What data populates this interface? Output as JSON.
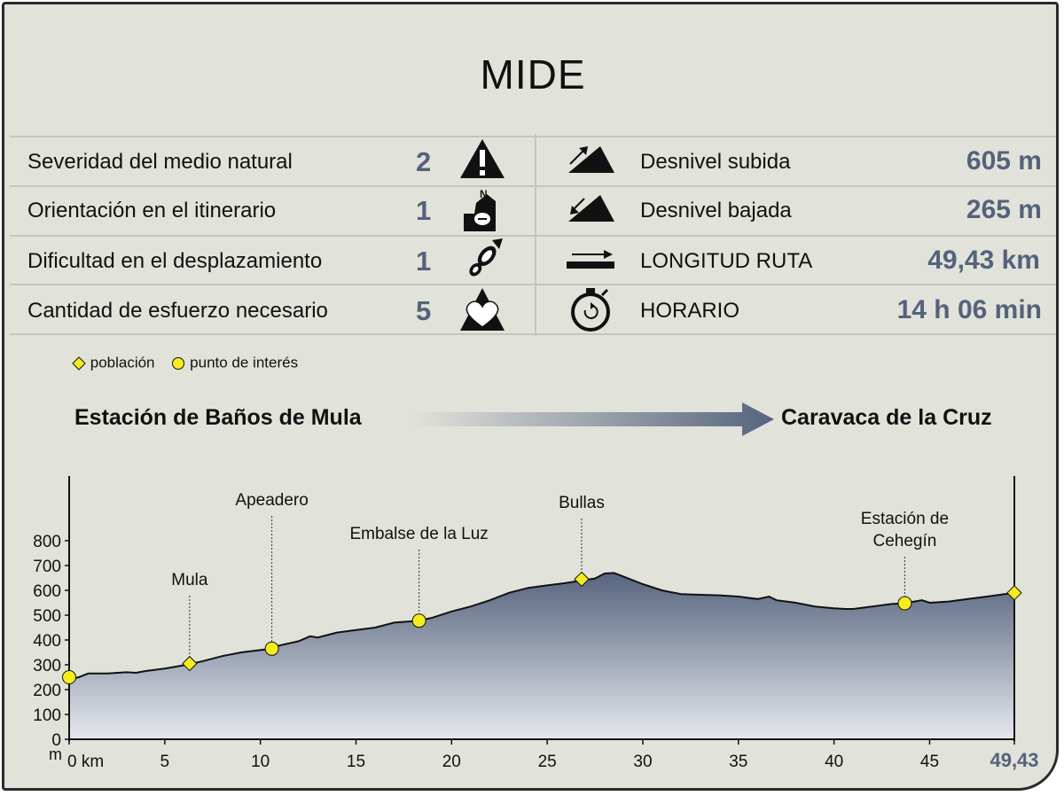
{
  "title": "MIDE",
  "mide": [
    {
      "label": "Severidad del medio natural",
      "value": "2",
      "icon": "warning-mountain-icon"
    },
    {
      "label": "Orientación en el itinerario",
      "value": "1",
      "icon": "compass-orientation-icon"
    },
    {
      "label": "Dificultad en el desplazamiento",
      "value": "1",
      "icon": "footprint-icon"
    },
    {
      "label": "Cantidad de esfuerzo necesario",
      "value": "5",
      "icon": "heart-mountain-icon"
    }
  ],
  "stats": [
    {
      "label": "Desnivel subida",
      "value": "605 m",
      "icon": "ascent-icon"
    },
    {
      "label": "Desnivel bajada",
      "value": "265 m",
      "icon": "descent-icon"
    },
    {
      "label": "LONGITUD RUTA",
      "value": "49,43 km",
      "icon": "distance-arrow-icon"
    },
    {
      "label": "HORARIO",
      "value": "14 h 06 min",
      "icon": "stopwatch-icon"
    }
  ],
  "legend": {
    "poblacion": "población",
    "punto": "punto de interés"
  },
  "route": {
    "from": "Estación de Baños de Mula",
    "to": "Caravaca de la Cruz"
  },
  "colors": {
    "profile_top": "#56647e",
    "profile_bottom": "#e6e8ee",
    "marker": "#f5ec1e",
    "value": "#55627a"
  },
  "chart_data": {
    "type": "area",
    "ylabel": "m",
    "xlabel": "",
    "x_unit": "km",
    "xlim": [
      0,
      49.43
    ],
    "ylim": [
      0,
      800
    ],
    "yticks": [
      "0",
      "100",
      "200",
      "300",
      "400",
      "500",
      "600",
      "700",
      "800"
    ],
    "xticks": [
      "0 km",
      "5",
      "10",
      "15",
      "20",
      "25",
      "30",
      "35",
      "40",
      "45",
      "49,43"
    ],
    "profile": {
      "x": [
        0,
        0.5,
        1,
        1.5,
        2,
        3,
        3.5,
        4,
        5,
        6.3,
        7,
        8,
        9,
        10.6,
        11,
        12,
        12.6,
        13,
        14,
        15,
        16,
        17,
        18.3,
        19,
        20,
        21,
        22,
        23,
        24,
        25,
        26,
        26.8,
        27.5,
        28,
        28.5,
        29,
        30,
        31,
        32,
        33,
        34,
        35,
        36,
        36.6,
        37,
        38,
        39,
        40,
        40.6,
        41,
        42,
        43,
        43.7,
        44.2,
        44.6,
        45,
        46,
        47,
        48,
        49.43
      ],
      "y": [
        240,
        250,
        265,
        265,
        265,
        270,
        268,
        275,
        285,
        302,
        315,
        335,
        350,
        365,
        378,
        395,
        415,
        410,
        430,
        440,
        450,
        470,
        478,
        490,
        515,
        535,
        560,
        590,
        610,
        620,
        630,
        640,
        648,
        668,
        670,
        655,
        625,
        600,
        585,
        582,
        580,
        575,
        565,
        575,
        560,
        550,
        535,
        528,
        525,
        525,
        535,
        545,
        548,
        555,
        560,
        550,
        555,
        565,
        575,
        590
      ]
    },
    "points": [
      {
        "name": "",
        "x": 0,
        "y": 250,
        "kind": "punto de interés"
      },
      {
        "name": "Mula",
        "x": 6.3,
        "y": 305,
        "kind": "población"
      },
      {
        "name": "Apeadero",
        "x": 10.6,
        "y": 365,
        "kind": "punto de interés"
      },
      {
        "name": "Embalse de la Luz",
        "x": 18.3,
        "y": 478,
        "kind": "punto de interés"
      },
      {
        "name": "Bullas",
        "x": 26.8,
        "y": 645,
        "kind": "población"
      },
      {
        "name": "Estación de Cehegín",
        "x": 43.7,
        "y": 548,
        "kind": "punto de interés"
      },
      {
        "name": "",
        "x": 49.43,
        "y": 590,
        "kind": "población"
      }
    ]
  }
}
